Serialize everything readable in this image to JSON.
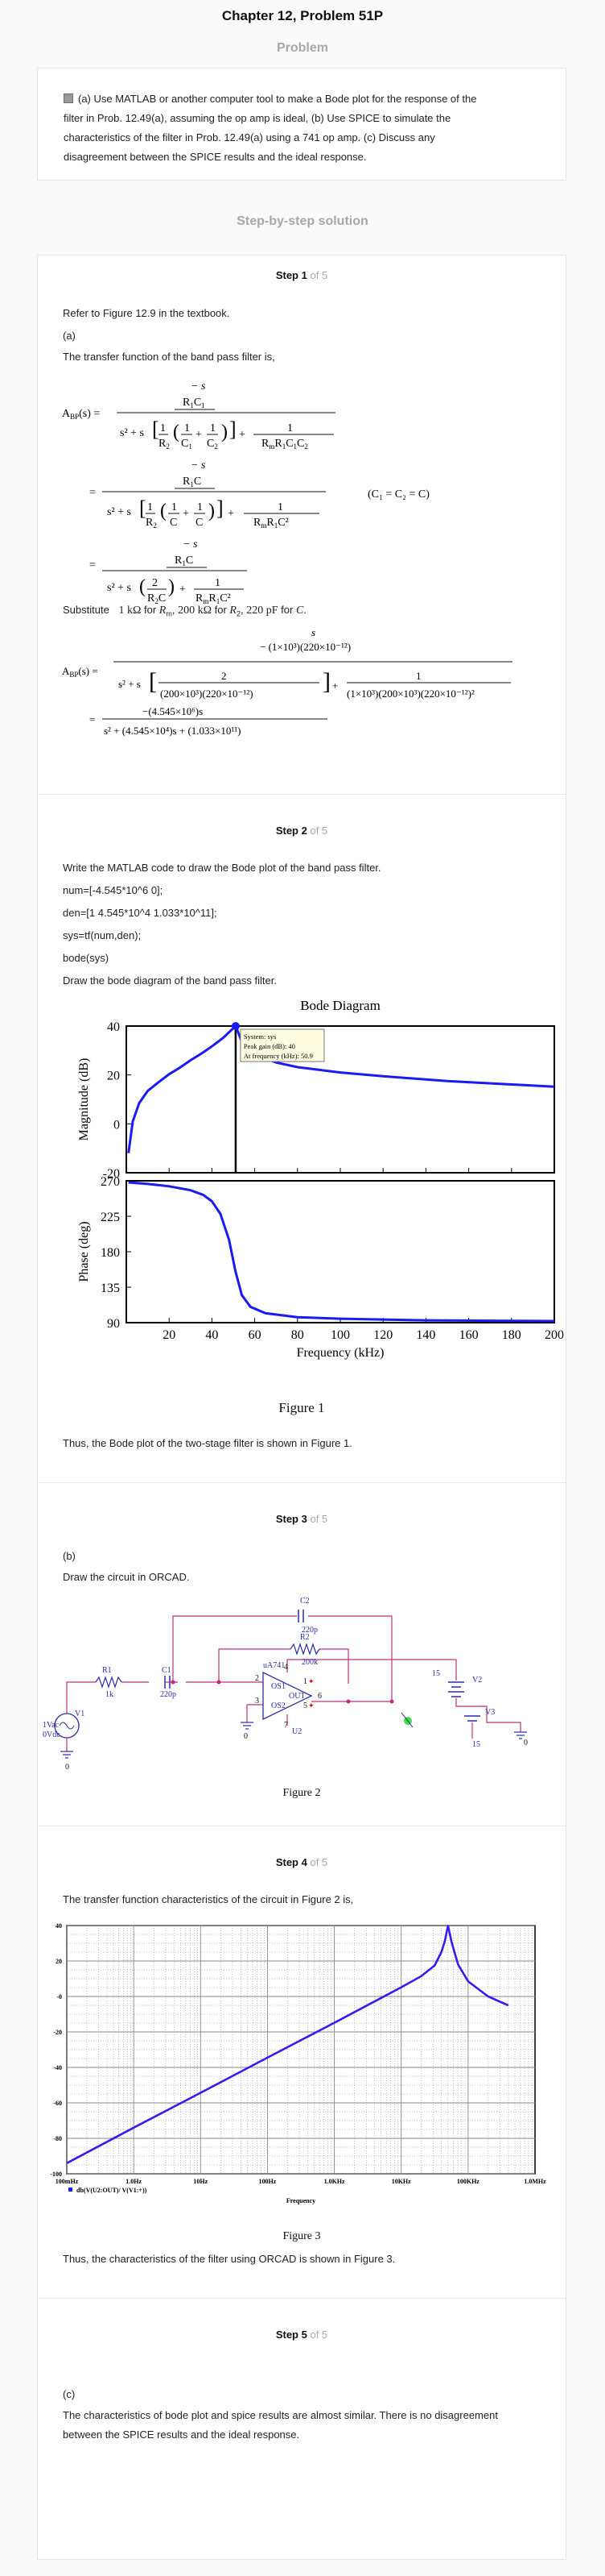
{
  "header": {
    "title": "Chapter 12, Problem 51P"
  },
  "problem": {
    "label": "Problem",
    "text_lines": [
      "(a) Use MATLAB or another computer tool to make a Bode plot for the response of the",
      "filter in Prob. 12.49(a), assuming the op amp is ideal, (b) Use SPICE to simulate the",
      "characteristics of the filter in Prob. 12.49(a) using a 741 op amp. (c) Discuss any",
      "disagreement between the SPICE results and the ideal response."
    ]
  },
  "solution": {
    "label": "Step-by-step solution"
  },
  "steps": [
    {
      "title": "Step 1",
      "of": "of 5",
      "lines": [
        "Refer to Figure 12.9 in the textbook.",
        "(a)",
        "The transfer function of the band pass filter is,"
      ],
      "equation_note": "(C₁ = C₂ = C)",
      "substitute": {
        "prefix": "Substitute",
        "v1": "1 kΩ",
        "f1": "for",
        "s1": "R",
        "v2": "200 kΩ",
        "f2": "for",
        "s2": "R",
        "v3": "220 pF",
        "f3": "for",
        "s3": "C"
      }
    },
    {
      "title": "Step 2",
      "of": "of 5",
      "lines": [
        "Write the MATLAB code to draw the Bode plot of the band pass filter.",
        "num=[-4.545*10^6 0];",
        "den=[1 4.545*10^4 1.033*10^11];",
        "sys=tf(num,den);",
        "bode(sys)",
        "Draw the bode diagram of the band pass filter."
      ],
      "figure_caption": "Figure 1",
      "after": "Thus, the Bode plot of the two-stage filter is shown in Figure 1."
    },
    {
      "title": "Step 3",
      "of": "of 5",
      "lines": [
        "(b)",
        "Draw the circuit in ORCAD."
      ],
      "figure_caption": "Figure 2"
    },
    {
      "title": "Step 4",
      "of": "of 5",
      "lines": [
        "The transfer function characteristics of the circuit in Figure 2 is,"
      ],
      "figure_caption": "Figure 3",
      "after": "Thus, the characteristics of the filter using ORCAD is shown in Figure 3."
    },
    {
      "title": "Step 5",
      "of": "of 5",
      "lines": [
        "(c)",
        "The characteristics of bode plot and spice results are almost similar. There is no disagreement",
        "between the SPICE results and the ideal response."
      ]
    }
  ],
  "bode_chart": {
    "type": "line",
    "title": "Bode Diagram",
    "xlabel": "Frequency  (kHz)",
    "xlim": [
      0,
      200
    ],
    "x_ticks": [
      "20",
      "40",
      "60",
      "80",
      "100",
      "120",
      "140",
      "160",
      "180",
      "200"
    ],
    "magnitude": {
      "ylabel": "Magnitude (dB)",
      "ylim": [
        -20,
        40
      ],
      "y_ticks": [
        "40",
        "20",
        "0",
        "-20"
      ],
      "x": [
        1,
        3,
        6,
        10,
        15,
        20,
        25,
        30,
        35,
        40,
        45,
        51.1,
        55,
        60,
        70,
        80,
        100,
        120,
        150,
        200
      ],
      "y": [
        -12,
        1,
        8.5,
        13.5,
        17,
        20.3,
        23,
        26,
        28.7,
        31.7,
        35,
        40,
        31.3,
        28.5,
        25.1,
        23.2,
        21,
        19.5,
        17.5,
        15.2
      ]
    },
    "phase": {
      "ylabel": "Phase (deg)",
      "ylim": [
        90,
        270
      ],
      "y_ticks": [
        "270",
        "225",
        "180",
        "135",
        "90"
      ],
      "x": [
        1,
        10,
        20,
        30,
        36,
        40,
        44,
        48,
        51,
        54,
        58,
        65,
        80,
        100,
        140,
        200
      ],
      "y": [
        268,
        266,
        263,
        258,
        252,
        244,
        228,
        195,
        155,
        125,
        110,
        102,
        97,
        95,
        93,
        92
      ]
    },
    "datatip": {
      "lines": [
        "System: sys",
        "Peak gain (dB): 40",
        "At frequency (kHz): 50.9"
      ]
    }
  },
  "circuit": {
    "labels": {
      "c2": "C2",
      "c2_val": "220p",
      "r2": "R2",
      "r2_val": "200k",
      "r1": "R1",
      "r1_val": "1k",
      "c1": "C1",
      "c1_val": "220p",
      "v1": "V1",
      "v1_val1": "1Vac",
      "v1_val2": "0Vdc",
      "opamp": "uA741",
      "u2": "U2",
      "pin2": "2",
      "pin3": "3",
      "pin4": "4",
      "pin7": "7",
      "pin1": "1",
      "pin5": "5",
      "pin6": "6",
      "os1": "OS1",
      "os2": "OS2",
      "out": "OUT",
      "v2": "V2",
      "v2_val": "15",
      "v3": "V3",
      "v3_val": "15",
      "ground": "0"
    }
  },
  "spice_chart": {
    "type": "line",
    "ylim": [
      -100,
      40
    ],
    "y_ticks": [
      "40",
      "20",
      "-0",
      "-20",
      "-40",
      "-60",
      "-80",
      "-100"
    ],
    "x_ticks": [
      "100mHz",
      "1.0Hz",
      "10Hz",
      "100Hz",
      "1.0KHz",
      "10KHz",
      "100KHz",
      "1.0MHz"
    ],
    "xlabel": "Frequency",
    "legend": "db(V(U2:OUT)/ V(V1:+))",
    "x_decades": [
      -1,
      0,
      1,
      2,
      3,
      3.6,
      4,
      4.3,
      4.5,
      4.6,
      4.65,
      4.7,
      4.75,
      4.85,
      5,
      5.3,
      5.6
    ],
    "y": [
      -94,
      -74,
      -54.3,
      -34.5,
      -14.8,
      -2.8,
      5.2,
      11.5,
      17.5,
      25,
      31,
      40,
      31,
      18,
      8.5,
      0,
      -5
    ]
  },
  "colors": {
    "curve": "#1a1af5",
    "circuit_wire": "#c0307a",
    "component": "#2c2caa",
    "tip_bg": "#fffde0",
    "green_dot": "#44dd44"
  }
}
